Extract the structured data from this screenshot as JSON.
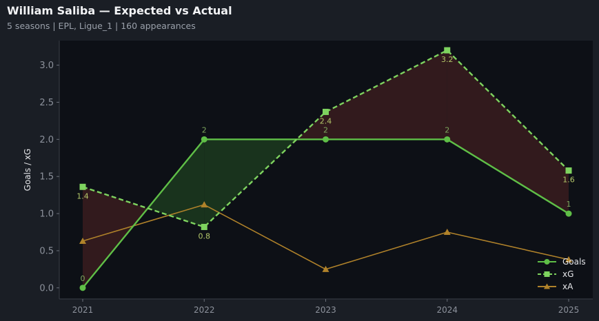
{
  "header": {
    "title": "William Saliba — Expected vs Actual",
    "subtitle": "5 seasons | EPL, Ligue_1 | 160 appearances"
  },
  "colors": {
    "background": "#1a1e25",
    "plot_background": "#0d1016",
    "goals": "#5fbf47",
    "xg": "#7ed35f",
    "xa": "#b0822a",
    "overperform_fill": "#1c3a1f",
    "underperform_fill": "#3a1c1f"
  },
  "chart_data": {
    "type": "line",
    "x": [
      "2021",
      "2022",
      "2023",
      "2024",
      "2025"
    ],
    "ylabel": "Goals / xG",
    "xlabel": "",
    "ylim": [
      -0.15,
      3.33
    ],
    "yticks": [
      "0.0",
      "0.5",
      "1.0",
      "1.5",
      "2.0",
      "2.5",
      "3.0"
    ],
    "series": [
      {
        "name": "Goals",
        "values": [
          0,
          2,
          2,
          2,
          1
        ],
        "labels": [
          "0",
          "2",
          "2",
          "2",
          "1"
        ],
        "marker": "circle",
        "style": "solid"
      },
      {
        "name": "xG",
        "values": [
          1.36,
          0.82,
          2.37,
          3.2,
          1.58
        ],
        "labels": [
          "1.4",
          "0.8",
          "2.4",
          "3.2",
          "1.6"
        ],
        "marker": "square",
        "style": "dashed"
      },
      {
        "name": "xA",
        "values": [
          0.63,
          1.12,
          0.25,
          0.75,
          0.38
        ],
        "marker": "triangle",
        "style": "solid"
      }
    ],
    "shade_between": [
      "Goals",
      "xG"
    ],
    "legend_position": "bottom-right",
    "grid": false
  }
}
